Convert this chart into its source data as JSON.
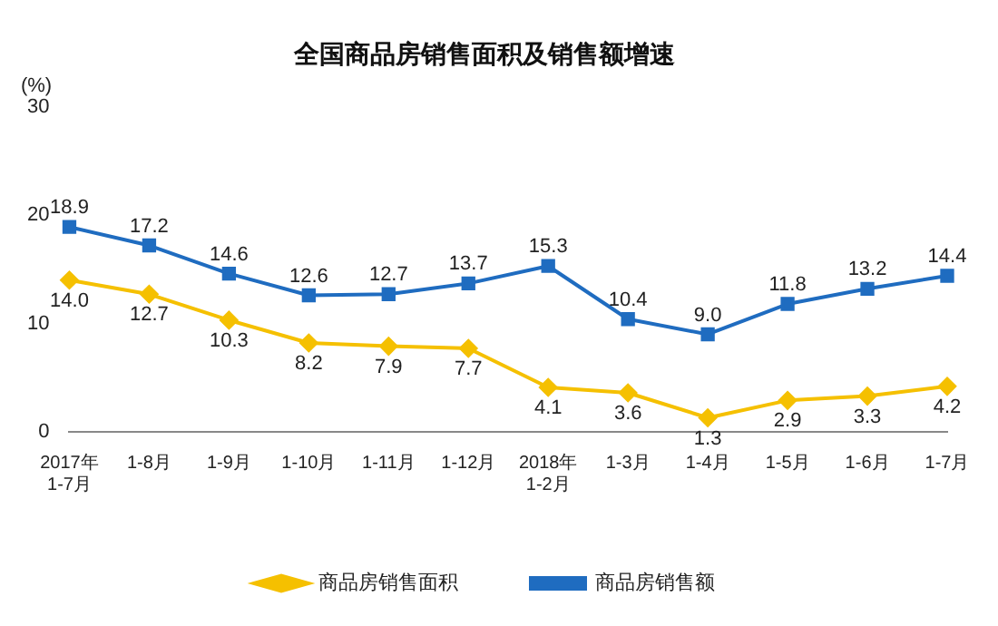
{
  "chart_data": {
    "type": "line",
    "title": "全国商品房销售面积及销售额增速",
    "ylabel": "(%)",
    "categories": [
      "2017年\n1-7月",
      "1-8月",
      "1-9月",
      "1-10月",
      "1-11月",
      "1-12月",
      "2018年\n1-2月",
      "1-3月",
      "1-4月",
      "1-5月",
      "1-6月",
      "1-7月"
    ],
    "series": [
      {
        "name": "商品房销售面积",
        "color": "#f5c000",
        "marker": "diamond",
        "values": [
          14.0,
          12.7,
          10.3,
          8.2,
          7.9,
          7.7,
          4.1,
          3.6,
          1.3,
          2.9,
          3.3,
          4.2
        ],
        "value_labels": [
          "14.0",
          "12.7",
          "10.3",
          "8.2",
          "7.9",
          "7.7",
          "4.1",
          "3.6",
          "1.3",
          "2.9",
          "3.3",
          "4.2"
        ]
      },
      {
        "name": "商品房销售额",
        "color": "#1f6cc0",
        "marker": "square",
        "values": [
          18.9,
          17.2,
          14.6,
          12.6,
          12.7,
          13.7,
          15.3,
          10.4,
          9.0,
          11.8,
          13.2,
          14.4
        ],
        "value_labels": [
          "18.9",
          "17.2",
          "14.6",
          "12.6",
          "12.7",
          "13.7",
          "15.3",
          "10.4",
          "9.0",
          "11.8",
          "13.2",
          "14.4"
        ]
      }
    ],
    "ylim": [
      0,
      30
    ],
    "yticks": [
      0,
      10,
      20,
      30
    ],
    "grid": false,
    "legend": "bottom"
  }
}
